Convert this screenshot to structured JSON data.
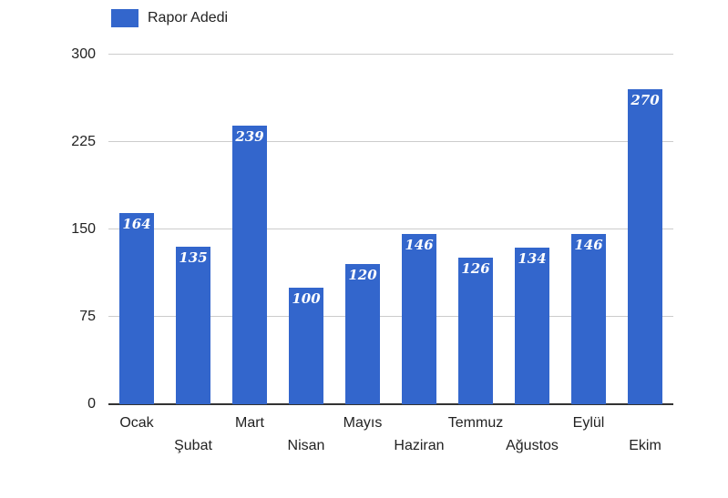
{
  "chart_data": {
    "type": "bar",
    "title": "",
    "xlabel": "",
    "ylabel": "",
    "categories": [
      "Ocak",
      "Şubat",
      "Mart",
      "Nisan",
      "Mayıs",
      "Haziran",
      "Temmuz",
      "Ağustos",
      "Eylül",
      "Ekim"
    ],
    "values": [
      164,
      135,
      239,
      100,
      120,
      146,
      126,
      134,
      146,
      270
    ],
    "series_name": "Rapor Adedi",
    "ylim": [
      0,
      300
    ],
    "yticks": [
      0,
      75,
      150,
      225,
      300
    ],
    "grid": true,
    "legend_position": "top-left",
    "x_labels_staggered": true,
    "value_labels_inside_bar_top": true
  },
  "legend": {
    "label": "Rapor Adedi"
  },
  "colors": {
    "bar": "#3366cc",
    "value_label": "#ffffff",
    "gridline": "#cccccc",
    "axis_line": "#333333",
    "text": "#222222",
    "background": "#ffffff"
  }
}
